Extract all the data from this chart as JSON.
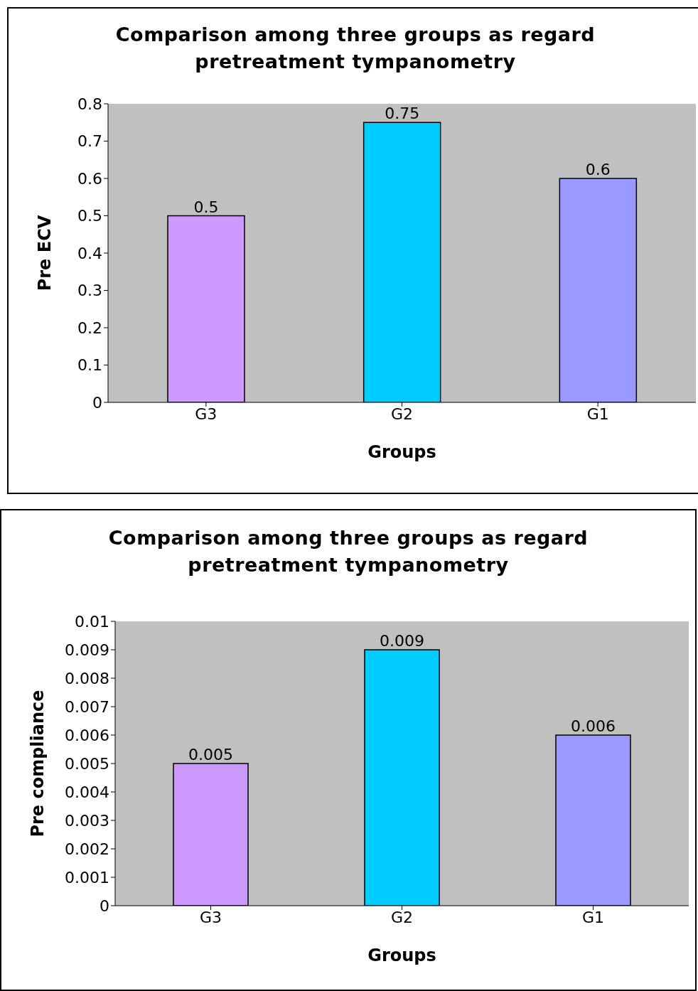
{
  "chart_data": [
    {
      "type": "bar",
      "title": "Comparison among three groups as regard pretreatment tympanometry",
      "xlabel": "Groups",
      "ylabel": "Pre ECV",
      "categories": [
        "G3",
        "G2",
        "G1"
      ],
      "values": [
        0.5,
        0.75,
        0.6
      ],
      "colors": [
        "#cc99ff",
        "#00ccff",
        "#9999ff"
      ],
      "ylim": [
        0,
        0.8
      ],
      "yticks": [
        0,
        0.1,
        0.2,
        0.3,
        0.4,
        0.5,
        0.6,
        0.7,
        0.8
      ],
      "data_labels": true,
      "legend": false
    },
    {
      "type": "bar",
      "title": "Comparison among three groups as regard pretreatment tympanometry",
      "xlabel": "Groups",
      "ylabel": "Pre compliance",
      "categories": [
        "G3",
        "G2",
        "G1"
      ],
      "values": [
        0.005,
        0.009,
        0.006
      ],
      "colors": [
        "#cc99ff",
        "#00ccff",
        "#9999ff"
      ],
      "ylim": [
        0,
        0.01
      ],
      "yticks": [
        0,
        0.001,
        0.002,
        0.003,
        0.004,
        0.005,
        0.006,
        0.007,
        0.008,
        0.009,
        0.01
      ],
      "data_labels": true,
      "legend": false
    }
  ]
}
